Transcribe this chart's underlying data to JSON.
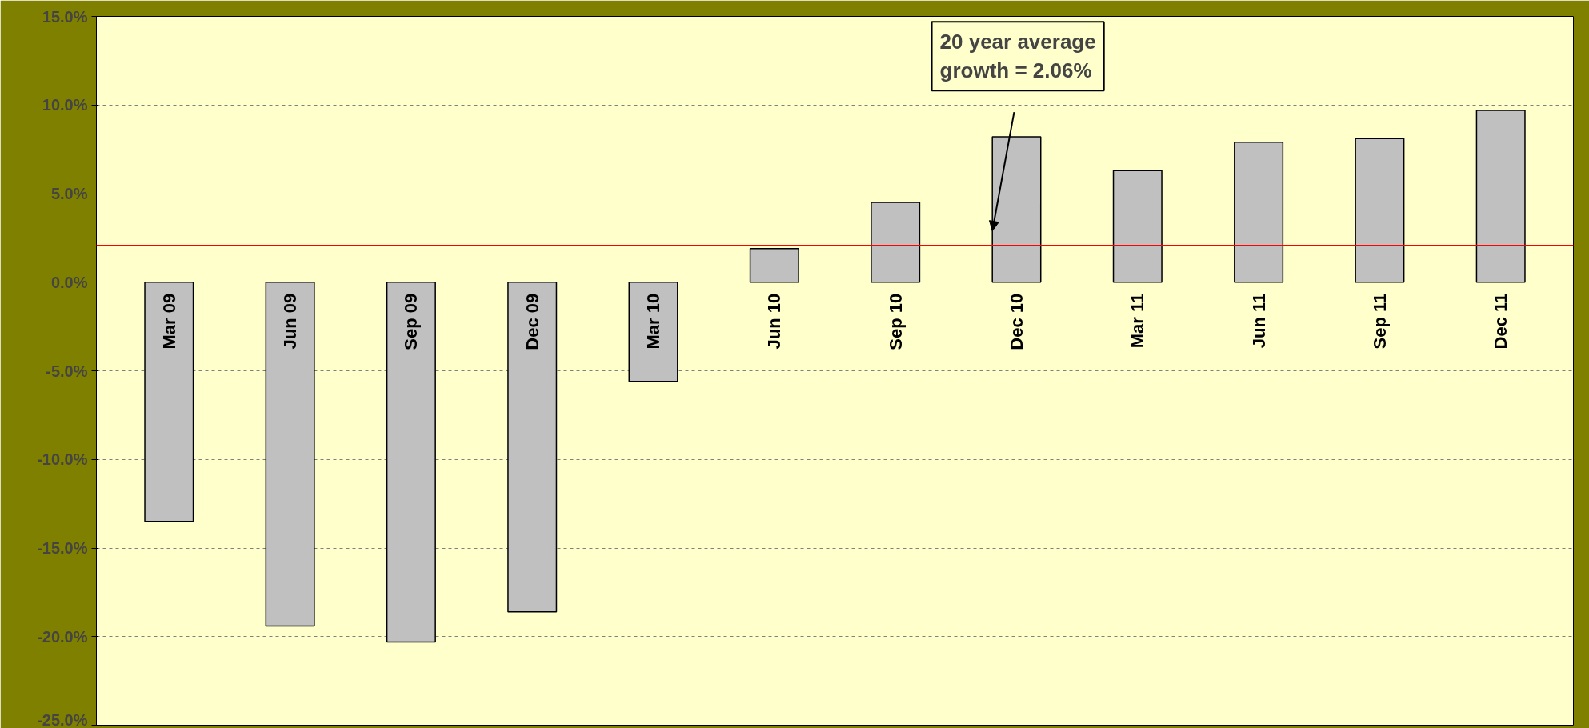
{
  "chart_data": {
    "type": "bar",
    "categories": [
      "Mar 09",
      "Jun 09",
      "Sep 09",
      "Dec 09",
      "Mar 10",
      "Jun 10",
      "Sep 10",
      "Dec 10",
      "Mar 11",
      "Jun 11",
      "Sep 11",
      "Dec 11"
    ],
    "values": [
      -13.5,
      -19.4,
      -20.3,
      -18.6,
      -5.6,
      1.9,
      4.5,
      8.2,
      6.3,
      7.9,
      8.1,
      9.7
    ],
    "color": "#c0c0c0",
    "ylim": [
      -25,
      15
    ],
    "yticks": [
      {
        "value": -25,
        "label": "-25.0%"
      },
      {
        "value": -20,
        "label": "-20.0%"
      },
      {
        "value": -15,
        "label": "-15.0%"
      },
      {
        "value": -10,
        "label": "-10.0%"
      },
      {
        "value": -5,
        "label": "-5.0%"
      },
      {
        "value": 0,
        "label": "0.0%"
      },
      {
        "value": 5,
        "label": "5.0%"
      },
      {
        "value": 10,
        "label": "10.0%"
      },
      {
        "value": 15,
        "label": "15.0%"
      }
    ],
    "grid": "y",
    "ref_lines": [
      {
        "axis": "y",
        "value": 2.06,
        "label": null,
        "color": "#ff0000"
      }
    ],
    "annotations": [
      "20 year average\ngrowth = 2.06%"
    ]
  }
}
